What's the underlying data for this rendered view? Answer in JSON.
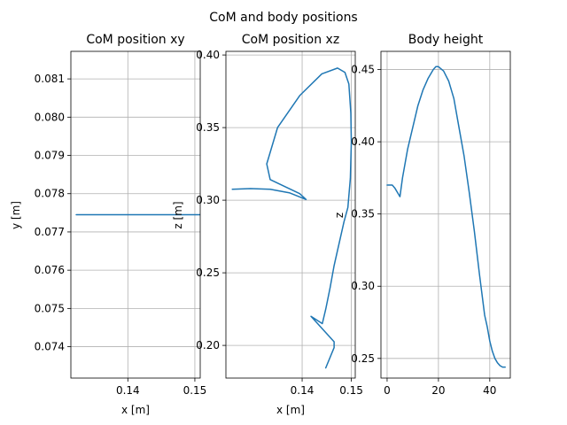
{
  "figure": {
    "suptitle": "CoM and body positions"
  },
  "chart_data": [
    {
      "type": "line",
      "title": "CoM position xy",
      "xlabel": "x [m]",
      "ylabel": "y [m]",
      "xlim": [
        0.1315,
        0.1508
      ],
      "ylim": [
        0.07318,
        0.08172
      ],
      "grid": true,
      "xticks": [
        0.14,
        0.15
      ],
      "xtick_labels": [
        "0.14",
        "0.15"
      ],
      "yticks": [
        0.074,
        0.075,
        0.076,
        0.077,
        0.078,
        0.079,
        0.08,
        0.081
      ],
      "ytick_labels": [
        "0.074",
        "0.075",
        "0.076",
        "0.077",
        "0.078",
        "0.079",
        "0.080",
        "0.081"
      ],
      "series": [
        {
          "x": [
            0.1323,
            0.1508
          ],
          "y": [
            0.07745,
            0.07745
          ],
          "color": "#1f77b4"
        }
      ]
    },
    {
      "type": "line",
      "title": "CoM position xz",
      "xlabel": "x [m]",
      "ylabel": "z [m]",
      "right_label": "z",
      "xlim": [
        0.1245,
        0.1508
      ],
      "ylim": [
        0.1775,
        0.4025
      ],
      "grid": true,
      "xticks": [
        0.14,
        0.15
      ],
      "xtick_labels": [
        "0.14",
        "0.15"
      ],
      "yticks": [
        0.2,
        0.25,
        0.3,
        0.35,
        0.4
      ],
      "ytick_labels": [
        "0.20",
        "0.25",
        "0.30",
        "0.35",
        "0.40"
      ],
      "series": [
        {
          "x": [
            0.1258,
            0.1295,
            0.1335,
            0.1375,
            0.1408,
            0.1395,
            0.1335,
            0.1328,
            0.135,
            0.1395,
            0.144,
            0.1472,
            0.1487,
            0.1495,
            0.1499,
            0.15,
            0.1498,
            0.1493,
            0.1485,
            0.1475,
            0.1465,
            0.1457,
            0.1448,
            0.1441,
            0.1418,
            0.1465,
            0.1465,
            0.1448
          ],
          "y": [
            0.3075,
            0.308,
            0.3075,
            0.305,
            0.3005,
            0.3045,
            0.3142,
            0.325,
            0.35,
            0.372,
            0.387,
            0.391,
            0.388,
            0.38,
            0.36,
            0.34,
            0.315,
            0.295,
            0.285,
            0.27,
            0.255,
            0.24,
            0.225,
            0.215,
            0.22,
            0.2025,
            0.1985,
            0.1845
          ],
          "color": "#1f77b4"
        }
      ]
    },
    {
      "type": "line",
      "title": "Body height",
      "xlabel": "",
      "ylabel": "",
      "xlim": [
        -2.4,
        48.0
      ],
      "ylim": [
        0.2364,
        0.4626
      ],
      "grid": true,
      "xticks": [
        0,
        20,
        40
      ],
      "xtick_labels": [
        "0",
        "20",
        "40"
      ],
      "yticks": [
        0.25,
        0.3,
        0.35,
        0.4,
        0.45
      ],
      "ytick_labels": [
        "0.25",
        "0.30",
        "0.35",
        "0.40",
        "0.45"
      ],
      "series": [
        {
          "x": [
            0,
            1,
            2,
            3,
            4,
            5,
            6,
            8,
            10,
            12,
            14,
            16,
            18,
            19,
            20,
            22,
            24,
            26,
            28,
            30,
            32,
            34,
            36,
            38,
            39,
            40,
            41,
            42,
            43,
            44,
            45,
            46
          ],
          "y": [
            0.37,
            0.37,
            0.37,
            0.368,
            0.365,
            0.362,
            0.375,
            0.395,
            0.41,
            0.425,
            0.436,
            0.444,
            0.45,
            0.452,
            0.452,
            0.449,
            0.442,
            0.43,
            0.41,
            0.39,
            0.365,
            0.338,
            0.308,
            0.28,
            0.272,
            0.262,
            0.255,
            0.25,
            0.247,
            0.245,
            0.244,
            0.244
          ],
          "color": "#1f77b4"
        }
      ]
    }
  ]
}
